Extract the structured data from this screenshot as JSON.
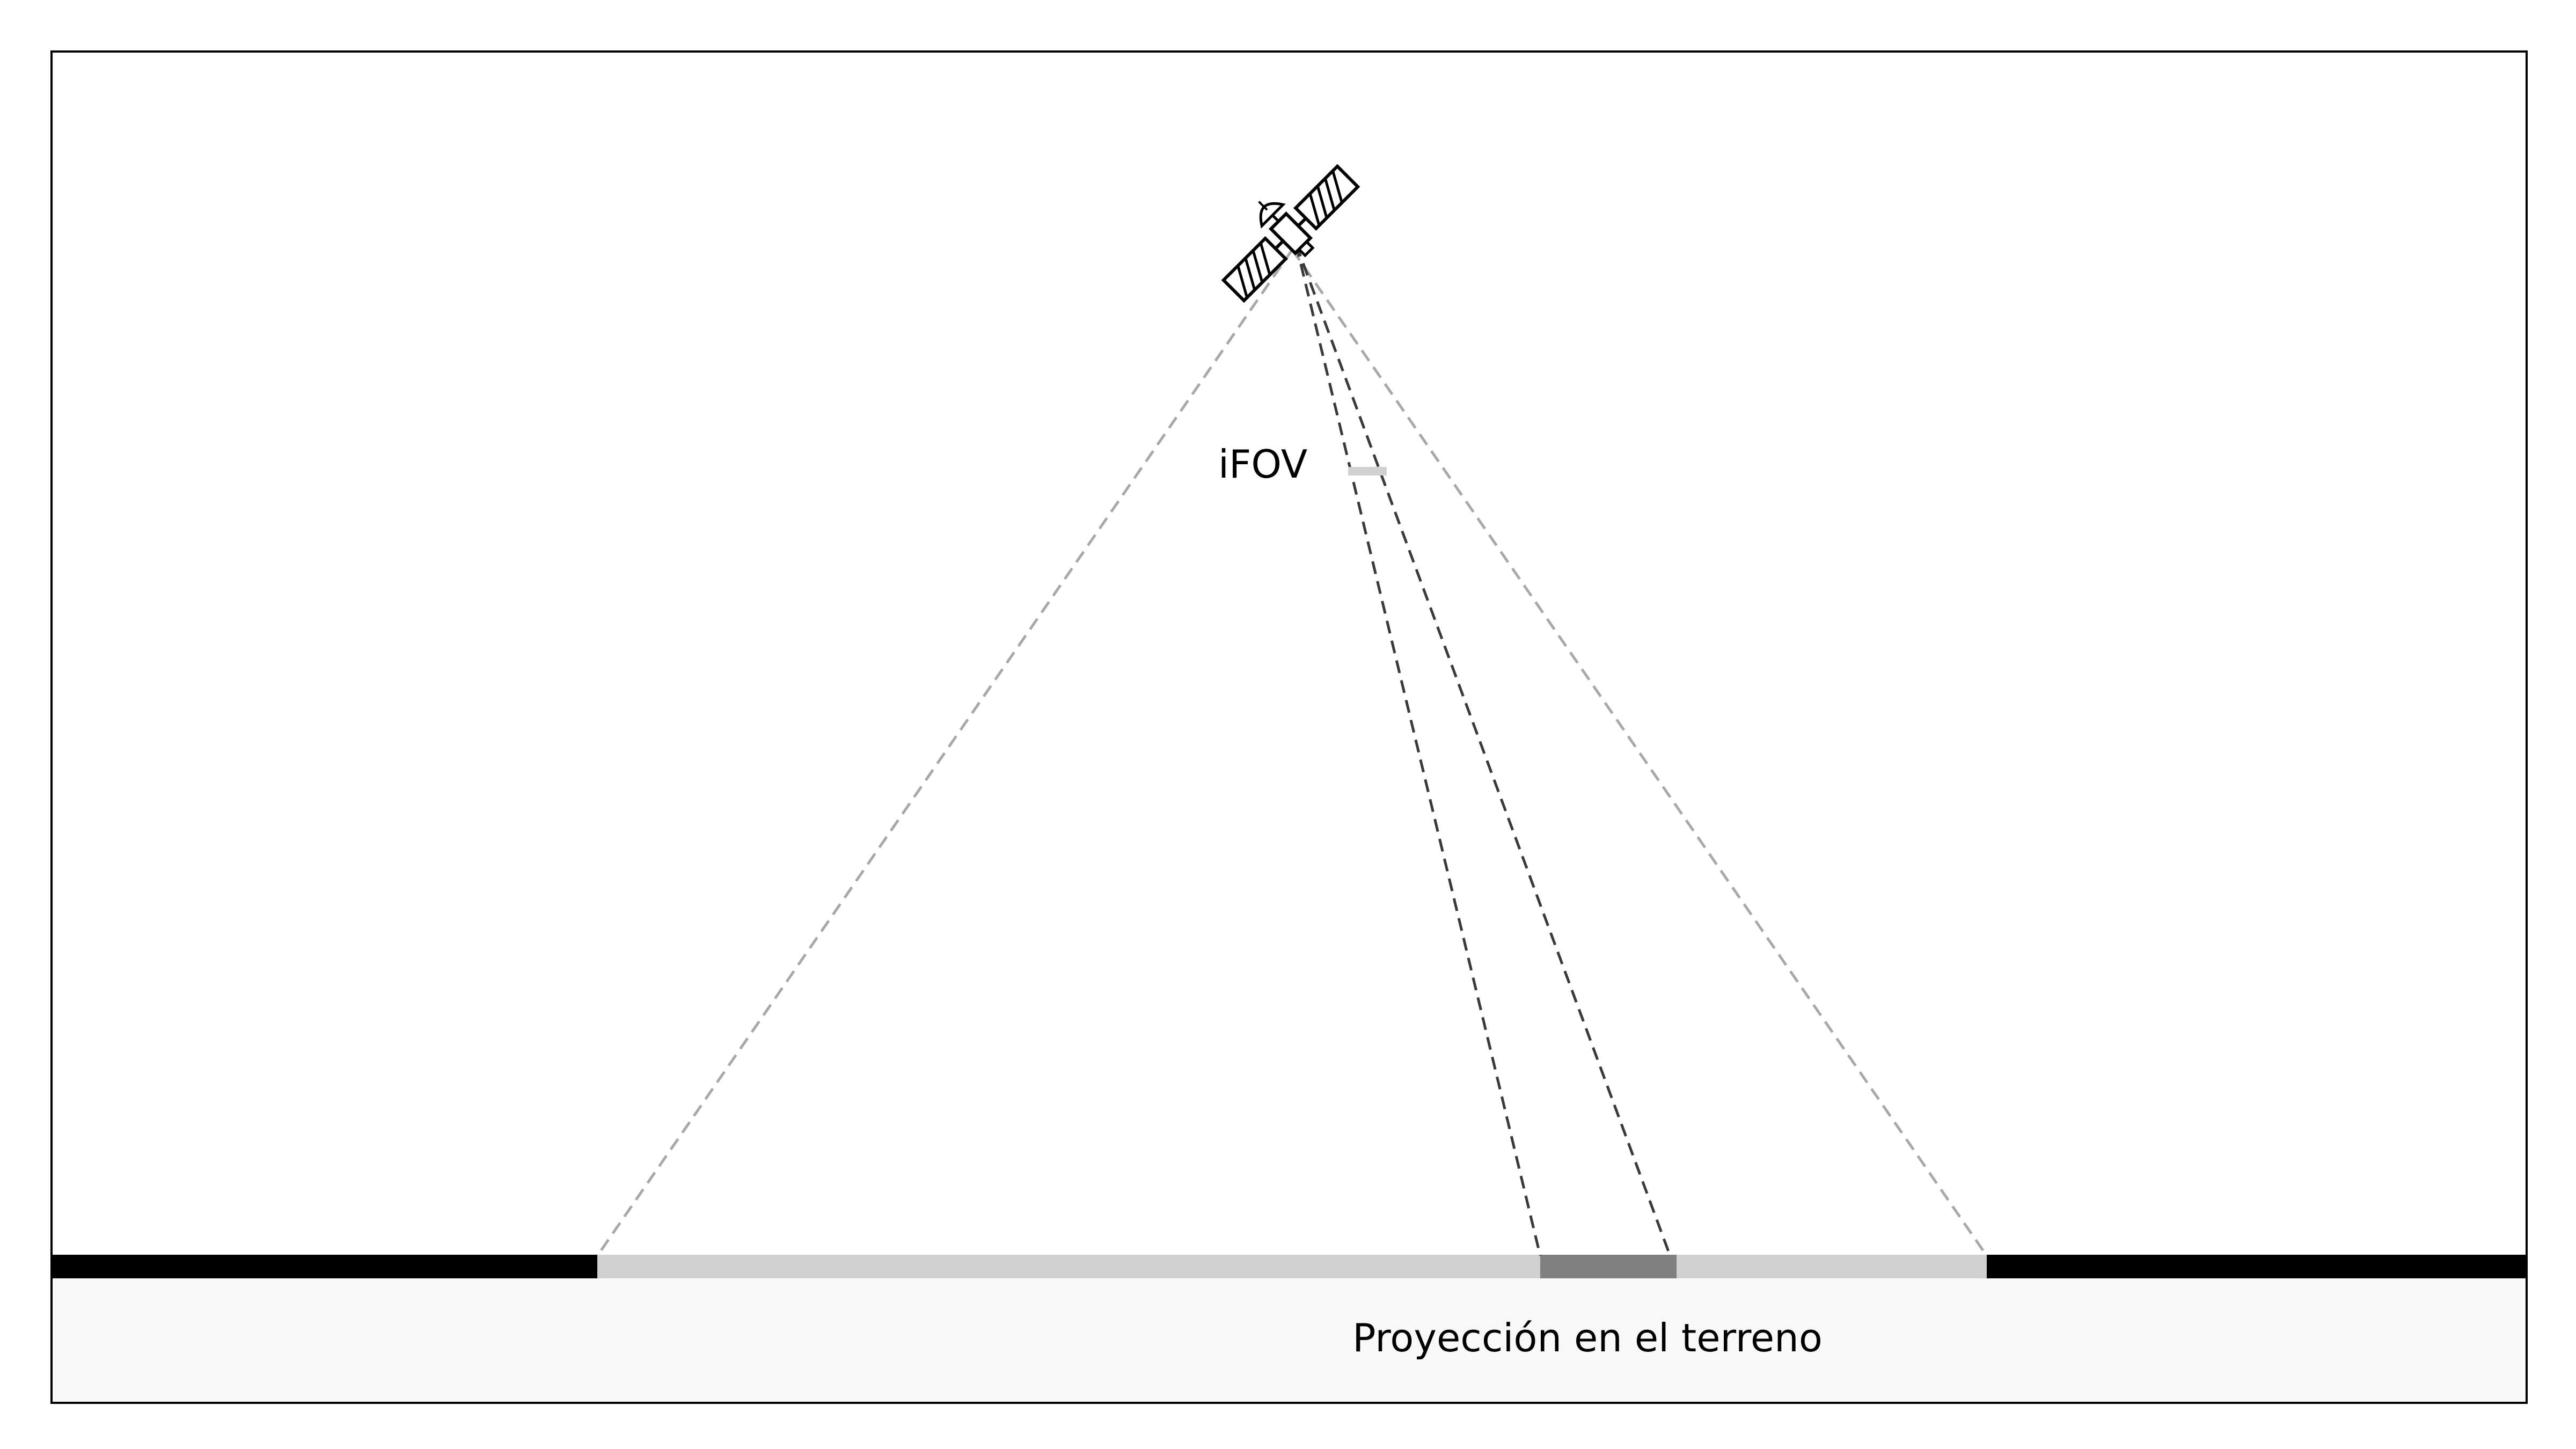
{
  "labels": {
    "ifov": "iFOV",
    "ground_projection": "Proyección en el terreno"
  },
  "colors": {
    "frame": "#000000",
    "ground_band": "#f8f8f8",
    "terrain_bar": "#000000",
    "swath": "#d0d0d0",
    "ifov_footprint": "#808080",
    "fov_lines": "#a8a8a8",
    "ifov_lines": "#3a3a3a"
  },
  "icons": [
    "satellite-icon"
  ]
}
